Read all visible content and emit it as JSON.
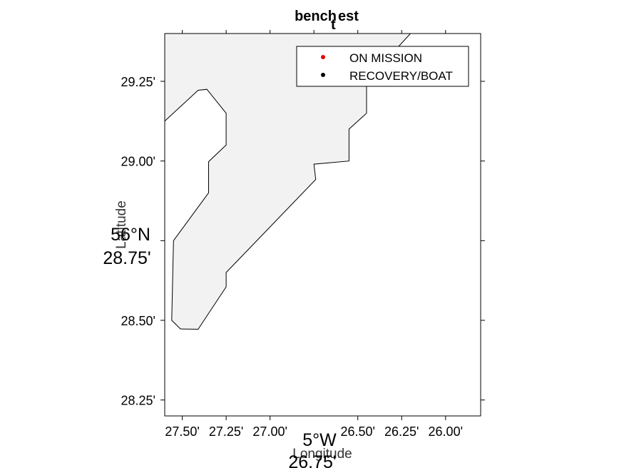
{
  "chart_data": {
    "type": "scatter",
    "title_main": "bench",
    "title_sub": "t",
    "title_rest": "est",
    "xlabel": "Longitude",
    "ylabel": "Latitude",
    "x_degree_label": "5°W",
    "x_extra_label": "26.75'",
    "y_degree_label": "56°N",
    "y_extra_label": "28.75'",
    "x_ticks": [
      {
        "value": -27.5,
        "label": "27.50'"
      },
      {
        "value": -27.25,
        "label": "27.25'"
      },
      {
        "value": -27.0,
        "label": "27.00'"
      },
      {
        "value": -26.5,
        "label": "26.50'"
      },
      {
        "value": -26.25,
        "label": "26.25'"
      },
      {
        "value": -26.0,
        "label": "26.00'"
      }
    ],
    "x_top_ticks": [
      -27.5,
      -27.25,
      -27.0,
      -26.75,
      -26.5,
      -26.25,
      -26.0
    ],
    "y_ticks": [
      {
        "value": 29.25,
        "label": "29.25'"
      },
      {
        "value": 29.0,
        "label": "29.00'"
      },
      {
        "value": 28.75,
        "label": ""
      },
      {
        "value": 28.5,
        "label": "28.50'"
      },
      {
        "value": 28.25,
        "label": "28.25'"
      }
    ],
    "xlim": [
      -27.6,
      -25.8
    ],
    "ylim": [
      28.2,
      29.4
    ],
    "land_color": "#f2f2f2",
    "land_polygon": [
      [
        -27.6,
        29.125
      ],
      [
        -27.41,
        29.222
      ],
      [
        -27.36,
        29.225
      ],
      [
        -27.25,
        29.15
      ],
      [
        -27.25,
        29.05
      ],
      [
        -27.35,
        28.998
      ],
      [
        -27.35,
        28.9
      ],
      [
        -27.55,
        28.75
      ],
      [
        -27.56,
        28.5
      ],
      [
        -27.51,
        28.473
      ],
      [
        -27.41,
        28.472
      ],
      [
        -27.25,
        28.605
      ],
      [
        -27.25,
        28.65
      ],
      [
        -26.74,
        28.942
      ],
      [
        -26.75,
        28.99
      ],
      [
        -26.55,
        29.0
      ],
      [
        -26.55,
        29.1
      ],
      [
        -26.45,
        29.15
      ],
      [
        -26.45,
        29.25
      ],
      [
        -26.2,
        29.4
      ],
      [
        -25.8,
        29.4
      ],
      [
        -25.8,
        29.4
      ],
      [
        -27.6,
        29.4
      ]
    ],
    "legend": {
      "position": "top-right",
      "entries": [
        {
          "label": "ON MISSION",
          "color": "#e8000b"
        },
        {
          "label": "RECOVERY/BOAT",
          "color": "#000000"
        }
      ]
    },
    "grid": false
  }
}
